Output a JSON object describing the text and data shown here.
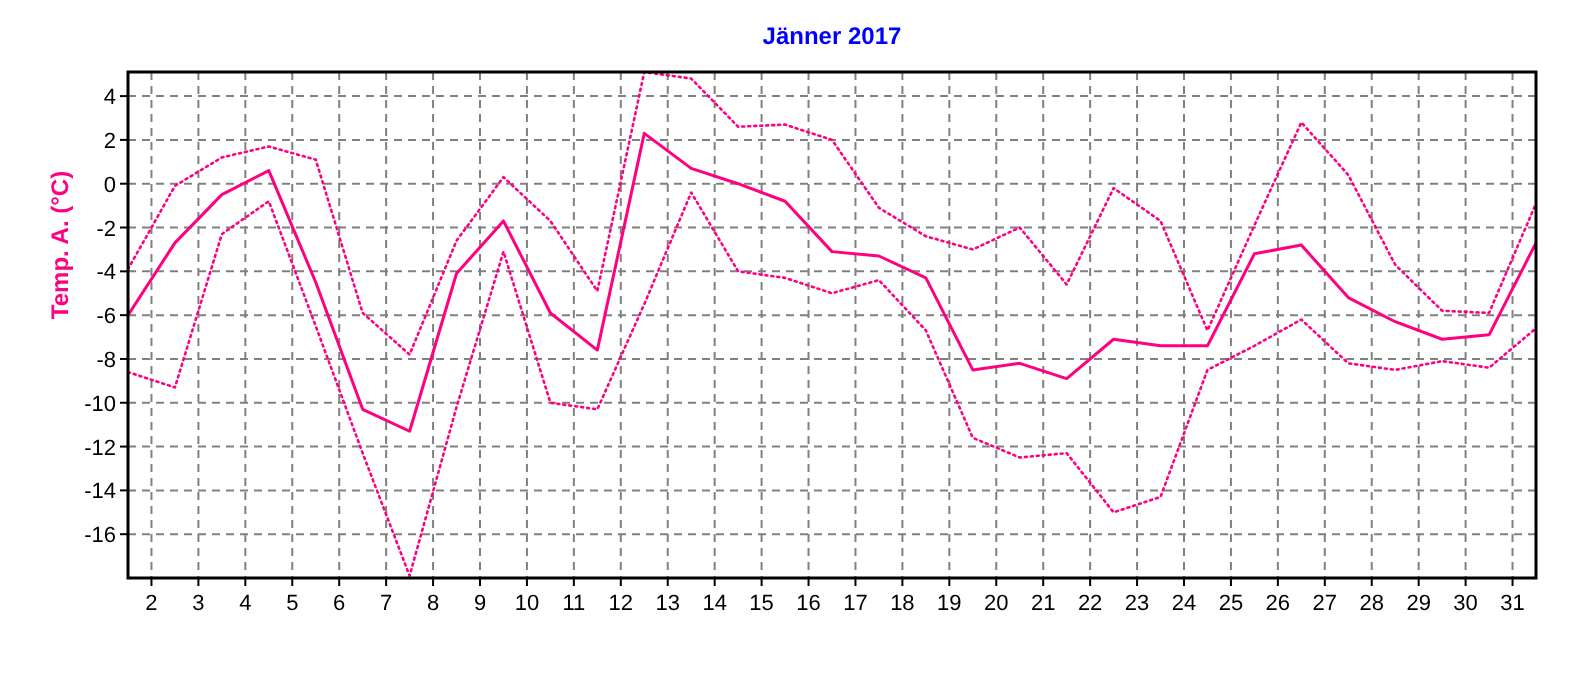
{
  "chart_data": {
    "type": "line",
    "title": "Jänner 2017",
    "ylabel": "Temp. A. (°C)",
    "x": [
      1.5,
      2.5,
      3.5,
      4.5,
      5.5,
      6.5,
      7.5,
      8.5,
      9.5,
      10.5,
      11.5,
      12.5,
      13.5,
      14.5,
      15.5,
      16.5,
      17.5,
      18.5,
      19.5,
      20.5,
      21.5,
      22.5,
      23.5,
      24.5,
      25.5,
      26.5,
      27.5,
      28.5,
      29.5,
      30.5,
      31.5
    ],
    "xlim": [
      1.5,
      31.5
    ],
    "xticks": [
      2,
      3,
      4,
      5,
      6,
      7,
      8,
      9,
      10,
      11,
      12,
      13,
      14,
      15,
      16,
      17,
      18,
      19,
      20,
      21,
      22,
      23,
      24,
      25,
      26,
      27,
      28,
      29,
      30,
      31
    ],
    "ylim": [
      -18,
      5.1
    ],
    "yticks": [
      -16,
      -14,
      -12,
      -10,
      -8,
      -6,
      -4,
      -2,
      0,
      2,
      4
    ],
    "grid": true,
    "series": [
      {
        "color": "#ff0080",
        "line_style": "solid",
        "values": [
          -6.0,
          -2.7,
          -0.5,
          0.6,
          -4.5,
          -10.3,
          -11.3,
          -4.1,
          -1.7,
          -5.9,
          -7.6,
          2.3,
          0.7,
          0.0,
          -0.8,
          -3.1,
          -3.3,
          -4.3,
          -8.5,
          -8.2,
          -8.9,
          -7.1,
          -7.4,
          -7.4,
          -3.2,
          -2.8,
          -5.2,
          -6.3,
          -7.1,
          -6.9,
          -2.7
        ]
      },
      {
        "color": "#ff0080",
        "line_style": "dotted",
        "values": [
          -3.9,
          -0.1,
          1.2,
          1.7,
          1.1,
          -5.9,
          -7.8,
          -2.6,
          0.3,
          -1.7,
          -4.9,
          5.1,
          4.8,
          2.6,
          2.7,
          2.0,
          -1.1,
          -2.4,
          -3.0,
          -2.0,
          -4.6,
          -0.2,
          -1.7,
          -6.7,
          -1.9,
          2.8,
          0.4,
          -3.7,
          -5.8,
          -5.9,
          -0.9
        ]
      },
      {
        "color": "#ff0080",
        "line_style": "dotted",
        "values": [
          -8.6,
          -9.3,
          -2.3,
          -0.8,
          -6.5,
          -12.3,
          -17.9,
          -10.2,
          -3.1,
          -10.0,
          -10.3,
          -5.5,
          -0.4,
          -4.0,
          -4.3,
          -5.0,
          -4.4,
          -6.7,
          -11.6,
          -12.5,
          -12.3,
          -15.0,
          -14.3,
          -8.5,
          -7.4,
          -6.2,
          -8.2,
          -8.5,
          -8.1,
          -8.4,
          -6.6
        ]
      }
    ]
  }
}
